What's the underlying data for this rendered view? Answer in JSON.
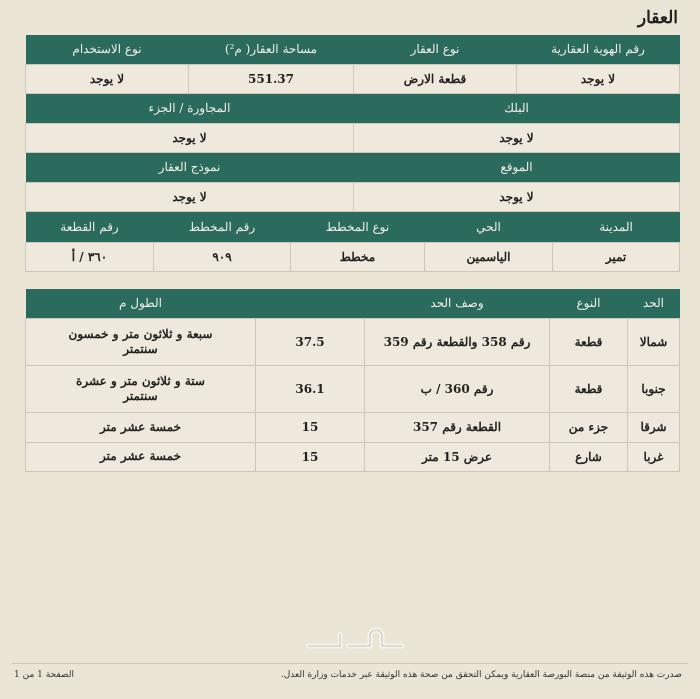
{
  "title": "العقار",
  "row1": {
    "headers": [
      "رقم الهوية العقارية",
      "نوع العقار",
      "مساحة العقار( م²)",
      "نوع الاستخدام"
    ],
    "values": [
      "لا يوجد",
      "قطعة الارض",
      "551.37",
      "لا يوجد"
    ]
  },
  "row2": {
    "headers": [
      "البلك",
      "المجاورة / الجزء"
    ],
    "values": [
      "لا يوجد",
      "لا يوجد"
    ]
  },
  "row3": {
    "headers": [
      "الموقع",
      "نموذج العقار"
    ],
    "values": [
      "لا يوجد",
      "لا يوجد"
    ]
  },
  "row4": {
    "headers": [
      "المدينة",
      "الحي",
      "نوع المخطط",
      "رقم المخطط",
      "رقم القطعة"
    ],
    "values": [
      "تمير",
      "الياسمين",
      "مخطط",
      "٩٠٩",
      "٣٦٠ / أ"
    ]
  },
  "bounds": {
    "headers": [
      "الحد",
      "النوع",
      "وصف الحد",
      "الطول م"
    ],
    "rows": [
      [
        "شمالا",
        "قطعة",
        "رقم 358 والقطعة رقم 359",
        "37.5",
        "سبعة و ثلاثون متر و خمسون سنتمتر"
      ],
      [
        "جنوبا",
        "قطعة",
        "رقم 360 / ب",
        "36.1",
        "ستة و ثلاثون متر و عشرة سنتمتر"
      ],
      [
        "شرقا",
        "جزء من",
        "القطعة رقم 357",
        "15",
        "خمسة عشر متر"
      ],
      [
        "غربا",
        "شارع",
        "عرض 15 متر",
        "15",
        "خمسة عشر متر"
      ]
    ]
  },
  "footer": {
    "note": "صدرت هذه الوثيقة من منصة البورصة العقارية ويمكن التحقق من صحة هذه الوثيقة عبر خدمات وزارة العدل.",
    "page": "الصفحة 1 من 1",
    "watermark": "حراج"
  },
  "colors": {
    "header": "#2b6b5d",
    "background": "#ebe5d6"
  }
}
